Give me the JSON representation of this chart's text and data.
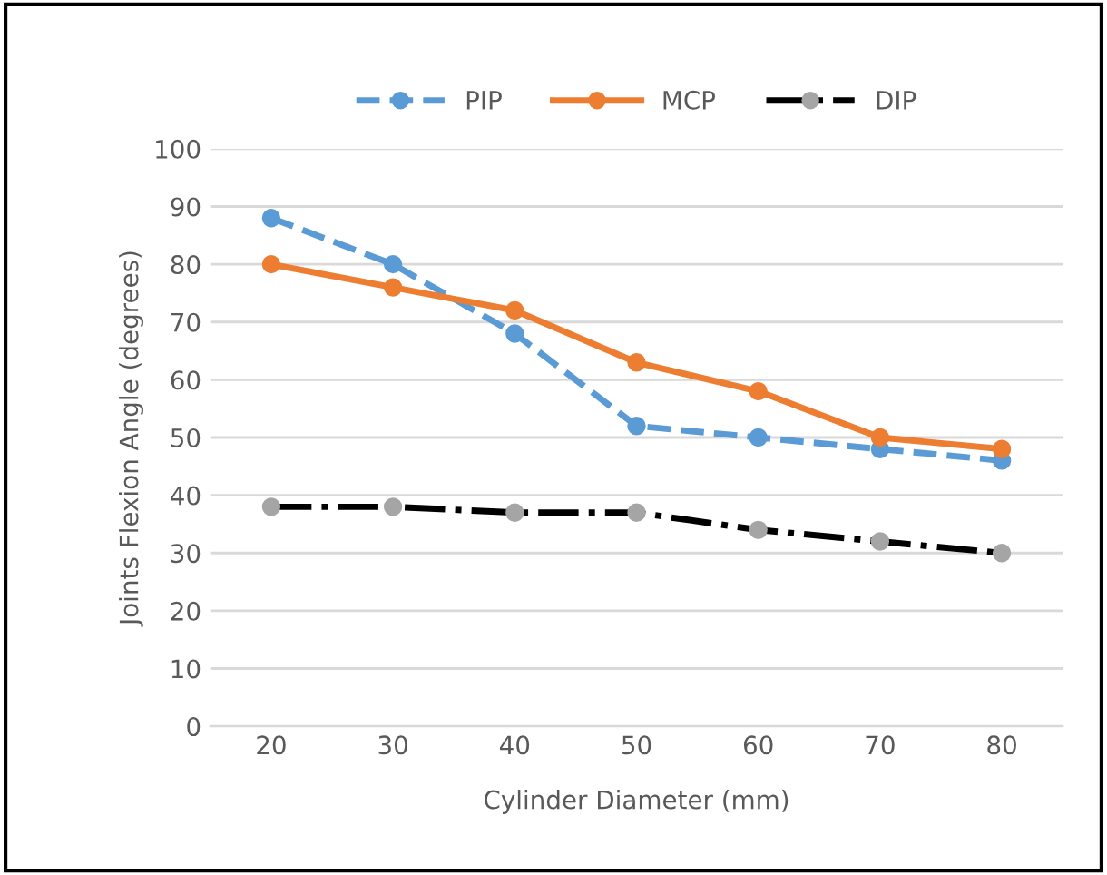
{
  "chart_data": {
    "type": "line",
    "xlabel": "Cylinder Diameter (mm)",
    "ylabel": "Joints Flexion Angle (degrees)",
    "categories": [
      "20",
      "30",
      "40",
      "50",
      "60",
      "70",
      "80"
    ],
    "series": [
      {
        "name": "PIP",
        "color": "#5b9bd5",
        "line_style": "dashed",
        "values": [
          88,
          80,
          68,
          52,
          50,
          48,
          46
        ]
      },
      {
        "name": "MCP",
        "color": "#ed7d31",
        "line_style": "solid",
        "values": [
          80,
          76,
          72,
          63,
          58,
          50,
          48
        ]
      },
      {
        "name": "DIP",
        "color": "#000000",
        "colors": [
          "#a5a5a5",
          "#a5a5a5",
          "#a5a5a5",
          "#a5a5a5",
          "#a5a5a5",
          "#a5a5a5",
          "#a5a5a5"
        ],
        "line_style": "dashdot",
        "values": [
          38,
          38,
          37,
          37,
          34,
          32,
          30
        ]
      }
    ],
    "ylim": [
      0,
      100
    ],
    "yticks": [
      0,
      10,
      20,
      30,
      40,
      50,
      60,
      70,
      80,
      90,
      100
    ],
    "grid": "y",
    "legend": "top",
    "marker": "circle"
  }
}
